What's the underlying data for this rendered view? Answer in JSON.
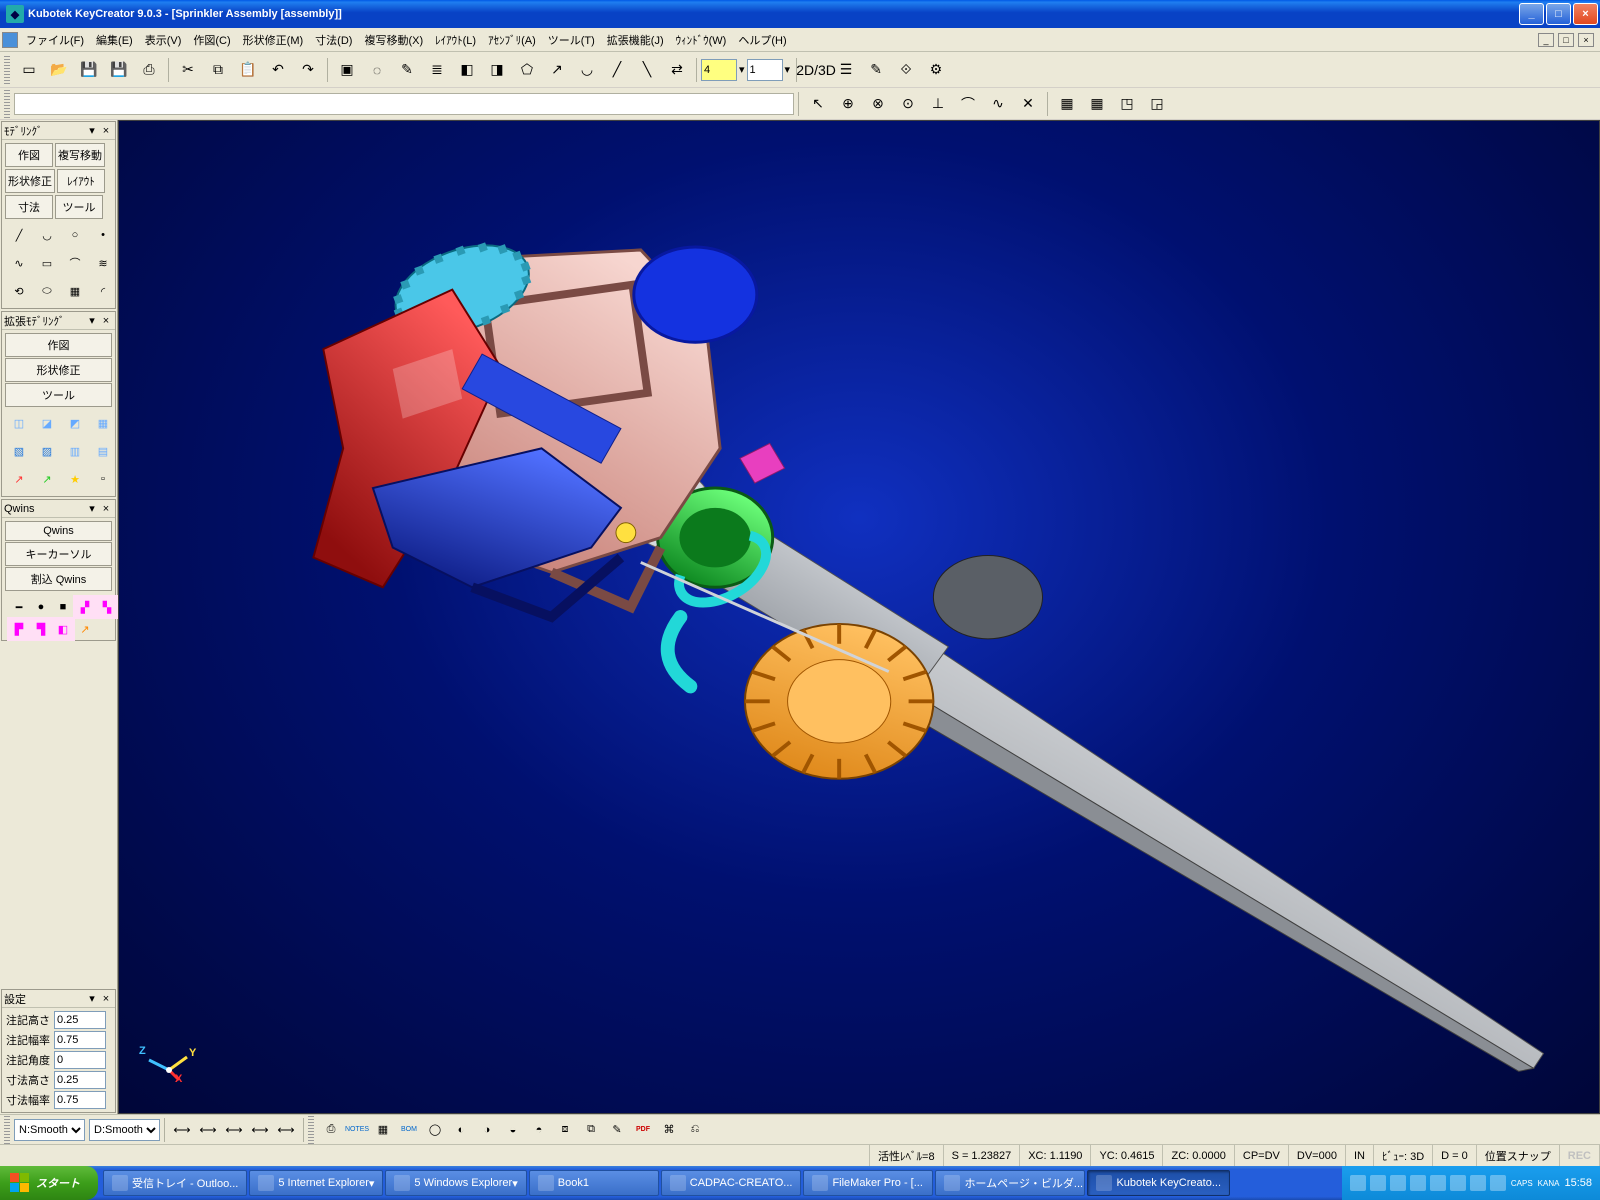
{
  "title": "Kubotek KeyCreator 9.0.3 - [Sprinkler Assembly [assembly]]",
  "menus": [
    "ファイル(F)",
    "編集(E)",
    "表示(V)",
    "作図(C)",
    "形状修正(M)",
    "寸法(D)",
    "複写移動(X)",
    "ﾚｲｱｳﾄ(L)",
    "ｱｾﾝﾌﾞﾘ(A)",
    "ツール(T)",
    "拡張機能(J)",
    "ｳｨﾝﾄﾞｳ(W)",
    "ヘルプ(H)"
  ],
  "toolbar1": {
    "layer_value": "4",
    "numeric_value": "1",
    "icons": [
      "new",
      "open",
      "save",
      "saveall",
      "print",
      "cut",
      "copy",
      "paste",
      "undo",
      "redo",
      "sel-window",
      "sel-lasso",
      "sel-paint",
      "layer-mgr",
      "layer-a",
      "layer-b",
      "poly",
      "vector",
      "arc",
      "line-a",
      "line-b",
      "swap",
      "2d3d",
      "tree",
      "annotate",
      "measure",
      "gear"
    ]
  },
  "toolbar2": {
    "group_a": [
      "cursor",
      "snap-end",
      "snap-mid",
      "snap-center",
      "snap-perp",
      "snap-tan",
      "snap-near",
      "snap-int"
    ],
    "group_b": [
      "grid-a",
      "grid-b",
      "plane-a",
      "plane-b"
    ]
  },
  "left": {
    "panel1": {
      "title": "ﾓﾃﾞﾘﾝｸﾞ",
      "b1": "作図",
      "b2": "複写移動",
      "b3": "形状修正",
      "b4": "ﾚｲｱｳﾄ",
      "b5": "寸法",
      "b6": "ツール",
      "draw_icons": [
        "line",
        "arc",
        "circle",
        "point",
        "spline",
        "rect",
        "curve",
        "wave",
        "link",
        "ellipse",
        "grid",
        "fillet"
      ]
    },
    "panel2": {
      "title": "拡張ﾓﾃﾞﾘﾝｸﾞ",
      "b1": "作図",
      "b2": "形状修正",
      "b3": "ツール",
      "solid_icons": [
        "box-a",
        "box-b",
        "box-c",
        "box-d",
        "box-e",
        "box-f",
        "box-g",
        "box-h",
        "axis-r",
        "axis-g",
        "axis-y",
        ""
      ]
    },
    "panel3": {
      "title": "Qwins",
      "b1": "Qwins",
      "b2": "キーカーソル",
      "b3": "割込 Qwins",
      "q_icons": [
        "ln",
        "cir",
        "sq",
        "hi1",
        "hi2",
        "hi3",
        "hi4",
        "hi5",
        "ar"
      ]
    },
    "panel4": {
      "title": "設定",
      "rows": [
        {
          "label": "注記高さ",
          "value": "0.25"
        },
        {
          "label": "注記幅率",
          "value": "0.75"
        },
        {
          "label": "注記角度",
          "value": "0"
        },
        {
          "label": "寸法高さ",
          "value": "0.25"
        },
        {
          "label": "寸法幅率",
          "value": "0.75"
        }
      ]
    }
  },
  "triad": {
    "x": "X",
    "y": "Y",
    "z": "Z",
    "colors": {
      "x": "#ff3030",
      "y": "#ffe040",
      "z": "#40c0ff"
    }
  },
  "model": {
    "bg_center": "#1030c0",
    "bg_edge": "#000638",
    "parts": {
      "spike": "#cfd2d6",
      "spike_dark": "#8a8e94",
      "tube": "#b7bcc2",
      "tube_dark": "#7e838a",
      "knob": "#e08a1c",
      "knob_hi": "#ffc060",
      "cap": "#5a5f66",
      "body": "#e9b0a8",
      "body_dark": "#c9837a",
      "trigger": "#d81e1e",
      "trigger_dark": "#8f0e0e",
      "arm": "#1f3fd8",
      "arm_dark": "#10208a",
      "disc": "#1432e0",
      "ring_g": "#1fd83a",
      "ring_g_dark": "#0f8a22",
      "ring_c": "#22d8d8",
      "tab_m": "#e83fbf",
      "gear": "#4ac7e8"
    }
  },
  "bottom": {
    "sel1": "N:Smooth",
    "sel2": "D:Smooth",
    "dim_icons": [
      "d1",
      "d2",
      "d3",
      "d4",
      "d5"
    ],
    "cmd_icons": [
      "printer",
      "notes",
      "mat",
      "bom",
      "c1",
      "c2",
      "c3",
      "c4",
      "c5",
      "c6",
      "c7",
      "c8",
      "pdf",
      "c9",
      "c10"
    ],
    "notes_label": "NOTES",
    "bom_label": "BOM",
    "pdf_label": "PDF"
  },
  "status": {
    "level": "活性ﾚﾍﾞﾙ=8",
    "s": "S = 1.23827",
    "xc": "XC: 1.1190",
    "yc": "YC: 0.4615",
    "zc": "ZC: 0.0000",
    "cp": "CP=DV",
    "dv": "DV=000",
    "in": "IN",
    "view": "ﾋﾞｭｰ: 3D",
    "d": "D = 0",
    "snap": "位置スナップ",
    "rec": "REC"
  },
  "taskbar": {
    "start": "スタート",
    "tasks": [
      {
        "label": "受信トレイ - Outloo...",
        "active": false
      },
      {
        "label": "5 Internet Explorer",
        "active": false,
        "dd": true
      },
      {
        "label": "5 Windows Explorer",
        "active": false,
        "dd": true
      },
      {
        "label": "Book1",
        "active": false
      },
      {
        "label": "CADPAC-CREATO...",
        "active": false
      },
      {
        "label": "FileMaker Pro - [...",
        "active": false
      },
      {
        "label": "ホームページ・ビルダ...",
        "active": false
      },
      {
        "label": "Kubotek KeyCreato...",
        "active": true
      }
    ],
    "tray_icons": 8,
    "caps": "CAPS",
    "kana": "KANA",
    "clock": "15:58"
  }
}
